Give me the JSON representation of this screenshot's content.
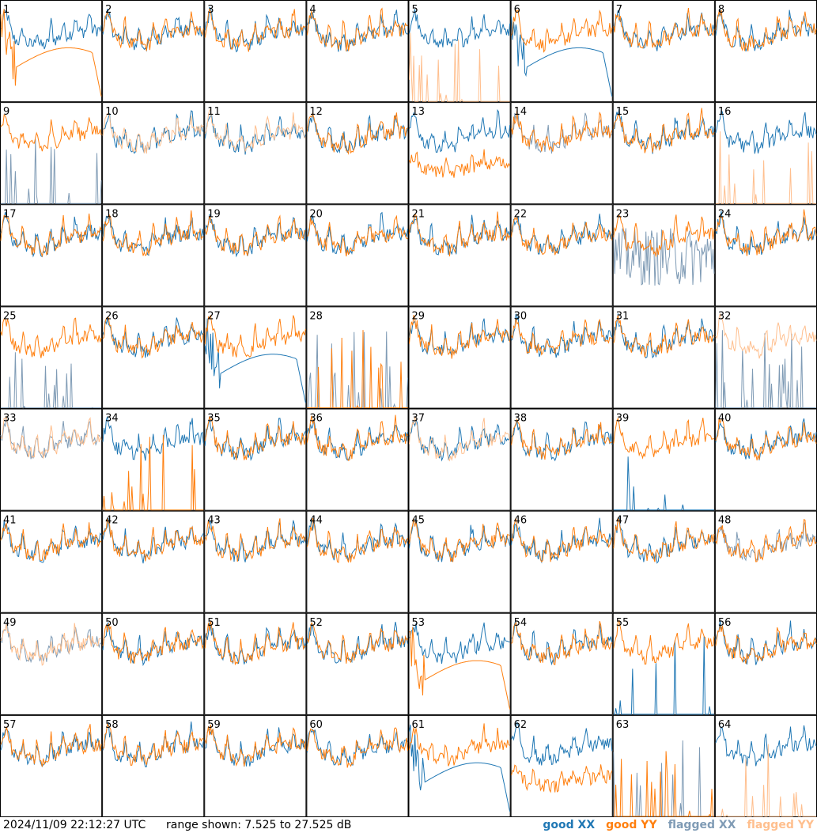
{
  "footer": {
    "timestamp": "2024/11/09 22:12:27 UTC",
    "range_text": "range shown: 7.525 to 27.525 dB"
  },
  "colors": {
    "good_xx": "#1f77b4",
    "good_yy": "#ff7f0e",
    "flagged_xx": "#7f9bb5",
    "flagged_yy": "#ffbf8e"
  },
  "chart_data": {
    "type": "line",
    "layout": "8x8 small multiples",
    "ylim": [
      7.525,
      27.525
    ],
    "yunits": "dB",
    "legend": [
      {
        "name": "good XX",
        "color": "#1f77b4"
      },
      {
        "name": "good YY",
        "color": "#ff7f0e"
      },
      {
        "name": "flagged XX",
        "color": "#7f9bb5"
      },
      {
        "name": "flagged YY",
        "color": "#ffbf8e"
      }
    ],
    "legend_position": "bottom-right",
    "panels": [
      {
        "id": "1",
        "xx": {
          "state": "good",
          "shape": "normal"
        },
        "yy": {
          "state": "good",
          "shape": "hump_drop"
        }
      },
      {
        "id": "2",
        "xx": {
          "state": "good",
          "shape": "normal"
        },
        "yy": {
          "state": "good",
          "shape": "normal"
        }
      },
      {
        "id": "3",
        "xx": {
          "state": "good",
          "shape": "normal"
        },
        "yy": {
          "state": "good",
          "shape": "normal"
        }
      },
      {
        "id": "4",
        "xx": {
          "state": "good",
          "shape": "normal"
        },
        "yy": {
          "state": "good",
          "shape": "normal"
        }
      },
      {
        "id": "5",
        "xx": {
          "state": "good",
          "shape": "normal"
        },
        "yy": {
          "state": "flagged",
          "shape": "spikes"
        }
      },
      {
        "id": "6",
        "xx": {
          "state": "good",
          "shape": "hump_drop"
        },
        "yy": {
          "state": "good",
          "shape": "normal"
        }
      },
      {
        "id": "7",
        "xx": {
          "state": "good",
          "shape": "normal"
        },
        "yy": {
          "state": "good",
          "shape": "normal"
        }
      },
      {
        "id": "8",
        "xx": {
          "state": "good",
          "shape": "normal"
        },
        "yy": {
          "state": "good",
          "shape": "normal"
        }
      },
      {
        "id": "9",
        "xx": {
          "state": "flagged",
          "shape": "spikes"
        },
        "yy": {
          "state": "good",
          "shape": "normal"
        }
      },
      {
        "id": "10",
        "xx": {
          "state": "good",
          "shape": "normal"
        },
        "yy": {
          "state": "flagged",
          "shape": "normal"
        }
      },
      {
        "id": "11",
        "xx": {
          "state": "good",
          "shape": "normal"
        },
        "yy": {
          "state": "flagged",
          "shape": "normal"
        }
      },
      {
        "id": "12",
        "xx": {
          "state": "good",
          "shape": "normal"
        },
        "yy": {
          "state": "good",
          "shape": "normal"
        }
      },
      {
        "id": "13",
        "xx": {
          "state": "good",
          "shape": "normal"
        },
        "yy": {
          "state": "good",
          "shape": "low"
        }
      },
      {
        "id": "14",
        "xx": {
          "state": "flagged",
          "shape": "normal"
        },
        "yy": {
          "state": "good",
          "shape": "normal"
        }
      },
      {
        "id": "15",
        "xx": {
          "state": "good",
          "shape": "normal"
        },
        "yy": {
          "state": "good",
          "shape": "normal"
        }
      },
      {
        "id": "16",
        "xx": {
          "state": "good",
          "shape": "normal"
        },
        "yy": {
          "state": "flagged",
          "shape": "spikes"
        }
      },
      {
        "id": "17",
        "xx": {
          "state": "good",
          "shape": "normal"
        },
        "yy": {
          "state": "good",
          "shape": "normal"
        }
      },
      {
        "id": "18",
        "xx": {
          "state": "good",
          "shape": "normal"
        },
        "yy": {
          "state": "good",
          "shape": "normal"
        }
      },
      {
        "id": "19",
        "xx": {
          "state": "good",
          "shape": "normal"
        },
        "yy": {
          "state": "good",
          "shape": "normal"
        }
      },
      {
        "id": "20",
        "xx": {
          "state": "good",
          "shape": "normal"
        },
        "yy": {
          "state": "good",
          "shape": "normal"
        }
      },
      {
        "id": "21",
        "xx": {
          "state": "good",
          "shape": "normal"
        },
        "yy": {
          "state": "good",
          "shape": "normal"
        }
      },
      {
        "id": "22",
        "xx": {
          "state": "good",
          "shape": "normal"
        },
        "yy": {
          "state": "good",
          "shape": "normal"
        }
      },
      {
        "id": "23",
        "xx": {
          "state": "flagged",
          "shape": "noisy"
        },
        "yy": {
          "state": "good",
          "shape": "normal"
        }
      },
      {
        "id": "24",
        "xx": {
          "state": "good",
          "shape": "normal"
        },
        "yy": {
          "state": "good",
          "shape": "normal"
        }
      },
      {
        "id": "25",
        "xx": {
          "state": "flagged",
          "shape": "spikes"
        },
        "yy": {
          "state": "good",
          "shape": "normal"
        }
      },
      {
        "id": "26",
        "xx": {
          "state": "good",
          "shape": "normal"
        },
        "yy": {
          "state": "good",
          "shape": "normal"
        }
      },
      {
        "id": "27",
        "xx": {
          "state": "good",
          "shape": "hump_drop"
        },
        "yy": {
          "state": "good",
          "shape": "normal"
        }
      },
      {
        "id": "28",
        "xx": {
          "state": "flagged",
          "shape": "spikes"
        },
        "yy": {
          "state": "good",
          "shape": "spikes"
        }
      },
      {
        "id": "29",
        "xx": {
          "state": "good",
          "shape": "normal"
        },
        "yy": {
          "state": "good",
          "shape": "normal"
        }
      },
      {
        "id": "30",
        "xx": {
          "state": "good",
          "shape": "normal"
        },
        "yy": {
          "state": "good",
          "shape": "normal"
        }
      },
      {
        "id": "31",
        "xx": {
          "state": "good",
          "shape": "normal"
        },
        "yy": {
          "state": "good",
          "shape": "normal"
        }
      },
      {
        "id": "32",
        "xx": {
          "state": "flagged",
          "shape": "spikes"
        },
        "yy": {
          "state": "flagged",
          "shape": "normal"
        }
      },
      {
        "id": "33",
        "xx": {
          "state": "flagged",
          "shape": "normal"
        },
        "yy": {
          "state": "flagged",
          "shape": "normal"
        }
      },
      {
        "id": "34",
        "xx": {
          "state": "good",
          "shape": "normal"
        },
        "yy": {
          "state": "good",
          "shape": "spikes"
        }
      },
      {
        "id": "35",
        "xx": {
          "state": "good",
          "shape": "normal"
        },
        "yy": {
          "state": "good",
          "shape": "normal"
        }
      },
      {
        "id": "36",
        "xx": {
          "state": "good",
          "shape": "normal"
        },
        "yy": {
          "state": "good",
          "shape": "normal"
        }
      },
      {
        "id": "37",
        "xx": {
          "state": "good",
          "shape": "normal"
        },
        "yy": {
          "state": "flagged",
          "shape": "normal"
        }
      },
      {
        "id": "38",
        "xx": {
          "state": "good",
          "shape": "normal"
        },
        "yy": {
          "state": "good",
          "shape": "normal"
        }
      },
      {
        "id": "39",
        "xx": {
          "state": "good",
          "shape": "spikes"
        },
        "yy": {
          "state": "good",
          "shape": "normal"
        }
      },
      {
        "id": "40",
        "xx": {
          "state": "good",
          "shape": "normal"
        },
        "yy": {
          "state": "good",
          "shape": "normal"
        }
      },
      {
        "id": "41",
        "xx": {
          "state": "good",
          "shape": "normal"
        },
        "yy": {
          "state": "good",
          "shape": "normal"
        }
      },
      {
        "id": "42",
        "xx": {
          "state": "good",
          "shape": "normal"
        },
        "yy": {
          "state": "good",
          "shape": "normal"
        }
      },
      {
        "id": "43",
        "xx": {
          "state": "good",
          "shape": "normal"
        },
        "yy": {
          "state": "good",
          "shape": "normal"
        }
      },
      {
        "id": "44",
        "xx": {
          "state": "good",
          "shape": "normal"
        },
        "yy": {
          "state": "good",
          "shape": "normal"
        }
      },
      {
        "id": "45",
        "xx": {
          "state": "good",
          "shape": "normal"
        },
        "yy": {
          "state": "good",
          "shape": "normal"
        }
      },
      {
        "id": "46",
        "xx": {
          "state": "good",
          "shape": "normal"
        },
        "yy": {
          "state": "good",
          "shape": "normal"
        }
      },
      {
        "id": "47",
        "xx": {
          "state": "good",
          "shape": "normal"
        },
        "yy": {
          "state": "good",
          "shape": "normal"
        }
      },
      {
        "id": "48",
        "xx": {
          "state": "flagged",
          "shape": "normal"
        },
        "yy": {
          "state": "good",
          "shape": "normal"
        }
      },
      {
        "id": "49",
        "xx": {
          "state": "flagged",
          "shape": "normal"
        },
        "yy": {
          "state": "flagged",
          "shape": "normal"
        }
      },
      {
        "id": "50",
        "xx": {
          "state": "good",
          "shape": "normal"
        },
        "yy": {
          "state": "good",
          "shape": "normal"
        }
      },
      {
        "id": "51",
        "xx": {
          "state": "good",
          "shape": "normal"
        },
        "yy": {
          "state": "good",
          "shape": "normal"
        }
      },
      {
        "id": "52",
        "xx": {
          "state": "good",
          "shape": "normal"
        },
        "yy": {
          "state": "good",
          "shape": "normal"
        }
      },
      {
        "id": "53",
        "xx": {
          "state": "good",
          "shape": "normal"
        },
        "yy": {
          "state": "good",
          "shape": "hump_drop"
        }
      },
      {
        "id": "54",
        "xx": {
          "state": "good",
          "shape": "normal"
        },
        "yy": {
          "state": "good",
          "shape": "normal"
        }
      },
      {
        "id": "55",
        "xx": {
          "state": "good",
          "shape": "spikes"
        },
        "yy": {
          "state": "good",
          "shape": "normal"
        }
      },
      {
        "id": "56",
        "xx": {
          "state": "good",
          "shape": "normal"
        },
        "yy": {
          "state": "good",
          "shape": "normal"
        }
      },
      {
        "id": "57",
        "xx": {
          "state": "good",
          "shape": "normal"
        },
        "yy": {
          "state": "good",
          "shape": "normal"
        }
      },
      {
        "id": "58",
        "xx": {
          "state": "good",
          "shape": "normal"
        },
        "yy": {
          "state": "good",
          "shape": "normal"
        }
      },
      {
        "id": "59",
        "xx": {
          "state": "good",
          "shape": "normal"
        },
        "yy": {
          "state": "good",
          "shape": "normal"
        }
      },
      {
        "id": "60",
        "xx": {
          "state": "good",
          "shape": "normal"
        },
        "yy": {
          "state": "good",
          "shape": "normal"
        }
      },
      {
        "id": "61",
        "xx": {
          "state": "good",
          "shape": "hump_drop"
        },
        "yy": {
          "state": "good",
          "shape": "normal"
        }
      },
      {
        "id": "62",
        "xx": {
          "state": "good",
          "shape": "normal"
        },
        "yy": {
          "state": "good",
          "shape": "low"
        }
      },
      {
        "id": "63",
        "xx": {
          "state": "flagged",
          "shape": "spikes"
        },
        "yy": {
          "state": "good",
          "shape": "spikes"
        }
      },
      {
        "id": "64",
        "xx": {
          "state": "good",
          "shape": "normal"
        },
        "yy": {
          "state": "flagged",
          "shape": "spikes"
        }
      }
    ]
  }
}
